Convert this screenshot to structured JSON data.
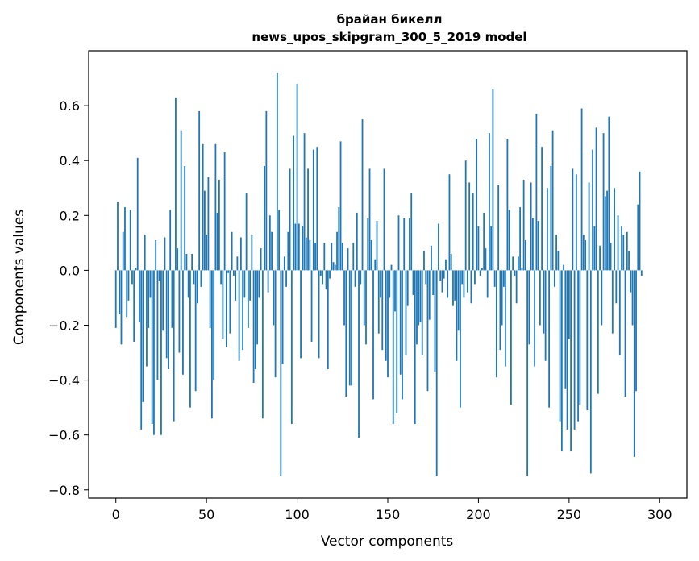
{
  "chart_data": {
    "type": "bar",
    "title": "брайан бикелл",
    "subtitle": "news_upos_skipgram_300_5_2019 model",
    "xlabel": "Vector components",
    "ylabel": "Components values",
    "xlim": [
      -15,
      315
    ],
    "ylim": [
      -0.83,
      0.8
    ],
    "xticks": [
      0,
      50,
      100,
      150,
      200,
      250,
      300
    ],
    "xtick_labels": [
      "0",
      "50",
      "100",
      "150",
      "200",
      "250",
      "300"
    ],
    "yticks": [
      -0.8,
      -0.6,
      -0.4,
      -0.2,
      0.0,
      0.2,
      0.4,
      0.6
    ],
    "ytick_labels": [
      "−0.8",
      "−0.6",
      "−0.4",
      "−0.2",
      "0.0",
      "0.2",
      "0.4",
      "0.6"
    ],
    "grid": false,
    "bar_color": "#1f77b4",
    "values": [
      -0.21,
      0.25,
      -0.16,
      -0.27,
      0.14,
      0.23,
      -0.17,
      -0.11,
      0.22,
      -0.05,
      -0.26,
      0.01,
      0.41,
      -0.19,
      -0.58,
      -0.48,
      0.13,
      -0.35,
      -0.21,
      -0.1,
      -0.56,
      -0.6,
      0.11,
      -0.4,
      -0.04,
      -0.6,
      -0.22,
      0.12,
      -0.32,
      -0.36,
      0.22,
      -0.21,
      -0.55,
      0.63,
      0.08,
      -0.3,
      0.51,
      -0.38,
      0.38,
      0.06,
      -0.1,
      -0.5,
      0.06,
      -0.05,
      -0.44,
      -0.12,
      0.58,
      -0.06,
      0.46,
      0.29,
      0.13,
      0.34,
      -0.21,
      -0.54,
      -0.4,
      0.46,
      0.21,
      0.33,
      -0.05,
      -0.25,
      0.43,
      -0.28,
      -0.01,
      -0.23,
      0.14,
      -0.02,
      -0.11,
      0.05,
      -0.33,
      0.12,
      -0.29,
      -0.1,
      0.28,
      -0.21,
      -0.11,
      0.13,
      -0.41,
      -0.36,
      -0.27,
      -0.1,
      0.08,
      -0.54,
      0.38,
      0.58,
      -0.08,
      0.2,
      0.14,
      -0.2,
      -0.39,
      0.72,
      0.22,
      -0.75,
      -0.34,
      0.05,
      -0.06,
      0.14,
      0.37,
      -0.56,
      0.49,
      0.17,
      0.68,
      0.17,
      -0.32,
      0.16,
      0.5,
      0.12,
      0.37,
      0.11,
      -0.26,
      0.44,
      0.1,
      0.45,
      -0.32,
      -0.02,
      -0.05,
      0.1,
      -0.07,
      -0.36,
      -0.03,
      0.1,
      0.03,
      0.02,
      0.14,
      0.23,
      0.47,
      0.1,
      -0.2,
      -0.46,
      0.08,
      -0.42,
      -0.42,
      0.1,
      -0.06,
      0.21,
      -0.61,
      -0.05,
      0.55,
      -0.2,
      -0.27,
      0.19,
      0.37,
      0.11,
      -0.47,
      0.04,
      0.18,
      -0.23,
      -0.1,
      -0.29,
      0.37,
      -0.33,
      -0.39,
      -0.1,
      0.02,
      -0.56,
      -0.15,
      -0.52,
      0.2,
      -0.38,
      -0.47,
      0.19,
      -0.31,
      -0.13,
      0.19,
      0.28,
      -0.09,
      -0.56,
      -0.27,
      -0.2,
      -0.19,
      -0.31,
      0.07,
      -0.05,
      -0.44,
      -0.18,
      0.09,
      -0.09,
      -0.37,
      -0.75,
      0.17,
      -0.04,
      -0.08,
      -0.03,
      0.04,
      -0.1,
      0.35,
      0.06,
      -0.13,
      -0.11,
      -0.33,
      -0.22,
      -0.5,
      -0.05,
      -0.1,
      0.4,
      -0.08,
      0.32,
      -0.12,
      0.28,
      -0.05,
      0.48,
      0.16,
      -0.02,
      0.01,
      0.21,
      0.08,
      -0.1,
      0.5,
      0.16,
      0.66,
      -0.06,
      -0.39,
      0.31,
      -0.29,
      -0.2,
      -0.06,
      -0.35,
      0.48,
      0.22,
      -0.49,
      0.05,
      -0.02,
      -0.12,
      0.05,
      0.23,
      0.01,
      0.33,
      0.11,
      -0.75,
      -0.27,
      0.32,
      0.19,
      -0.35,
      0.57,
      0.18,
      -0.2,
      0.45,
      -0.23,
      -0.33,
      0.3,
      -0.5,
      0.38,
      0.51,
      -0.06,
      0.13,
      0.07,
      -0.55,
      -0.66,
      0.02,
      -0.43,
      -0.58,
      -0.25,
      -0.66,
      0.37,
      -0.58,
      0.35,
      -0.55,
      -0.49,
      0.59,
      0.13,
      0.11,
      -0.51,
      0.32,
      -0.74,
      0.44,
      0.16,
      0.52,
      -0.45,
      0.09,
      -0.2,
      0.5,
      0.27,
      0.29,
      0.56,
      0.1,
      -0.23,
      0.3,
      -0.12,
      0.2,
      -0.31,
      0.16,
      0.13,
      -0.46,
      0.14,
      0.07,
      -0.08,
      -0.2,
      -0.68,
      -0.44,
      0.24,
      0.36,
      -0.02
    ]
  }
}
